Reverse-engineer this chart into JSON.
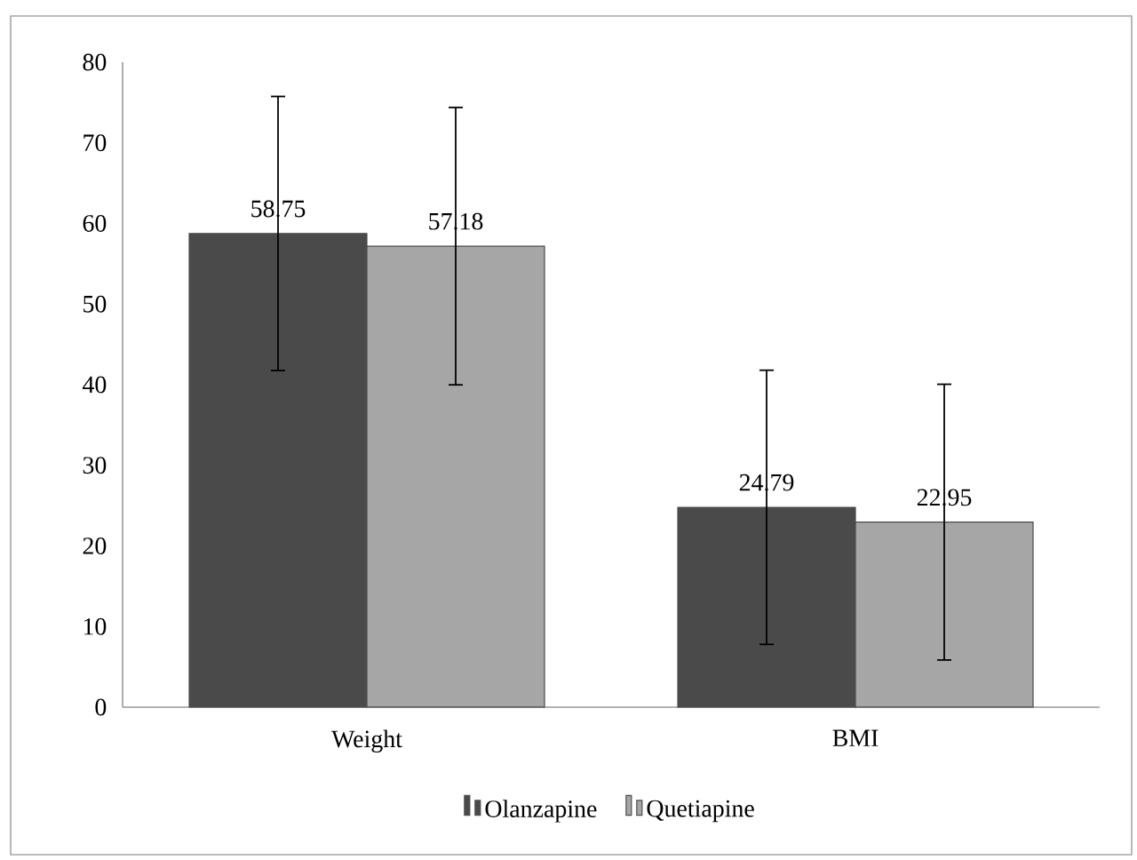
{
  "chart_data": {
    "type": "bar",
    "categories": [
      "Weight",
      "BMI"
    ],
    "series": [
      {
        "name": "Olanzapine",
        "color": "#4a4a4a",
        "values": [
          58.75,
          24.79
        ],
        "errors": [
          17,
          17
        ]
      },
      {
        "name": "Quetiapine",
        "color": "#a6a6a6",
        "values": [
          57.18,
          22.95
        ],
        "errors": [
          17.2,
          17.1
        ]
      }
    ],
    "ylim": [
      0,
      80
    ],
    "yticks": [
      0,
      10,
      20,
      30,
      40,
      50,
      60,
      70,
      80
    ],
    "data_labels": true,
    "legend": "bottom",
    "grid": false
  }
}
